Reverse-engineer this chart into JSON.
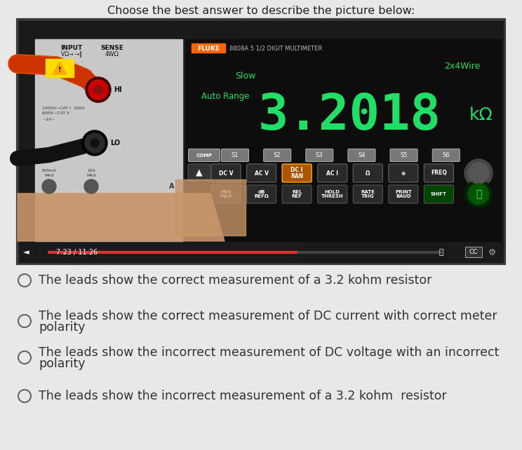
{
  "title": "Choose the best answer to describe the picture below:",
  "title_fontsize": 11.5,
  "title_color": "#222222",
  "bg_color": "#e8e8e8",
  "options": [
    "The leads show the correct measurement of a 3.2 kohm resistor",
    "The leads show the correct measurement of DC current with correct meter\npolarity",
    "The leads show the incorrect measurement of DC voltage with an incorrect\npolarity",
    "The leads show the incorrect measurement of a 3.2 kohm  resistor"
  ],
  "option_fontsize": 12.5,
  "option_color": "#333333",
  "circle_color": "#666666",
  "meter_display": "3.2018",
  "meter_unit": "kΩ",
  "meter_color": "#22dd66",
  "slow_label": "Slow",
  "auto_range_label": "Auto Range",
  "wire_label": "2x4Wire",
  "time_label": "7:23 / 11:26",
  "video_bar_color": "#dd3333",
  "progress": 0.63,
  "panel_bg": "#c8c8c8",
  "screen_bg": "#0d0d0d",
  "frame_outer": "#3a3a3a",
  "frame_inner": "#888888"
}
